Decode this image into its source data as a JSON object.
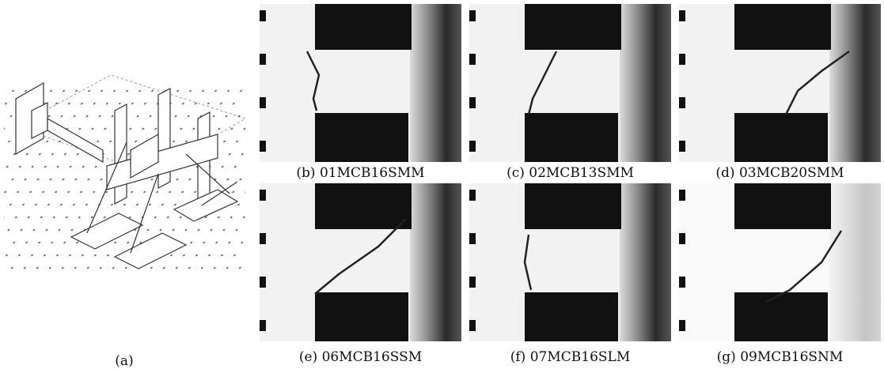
{
  "figure": {
    "panels": [
      {
        "label": "(a)"
      },
      {
        "label": "(b) 01MCB16SMM"
      },
      {
        "label": "(c) 02MCB13SMM"
      },
      {
        "label": "(d) 03MCB20SMM"
      },
      {
        "label": "(e) 06MCB16SSM"
      },
      {
        "label": "(f) 07MCB16SLM"
      },
      {
        "label": "(g) 09MCB16SNM"
      }
    ]
  }
}
